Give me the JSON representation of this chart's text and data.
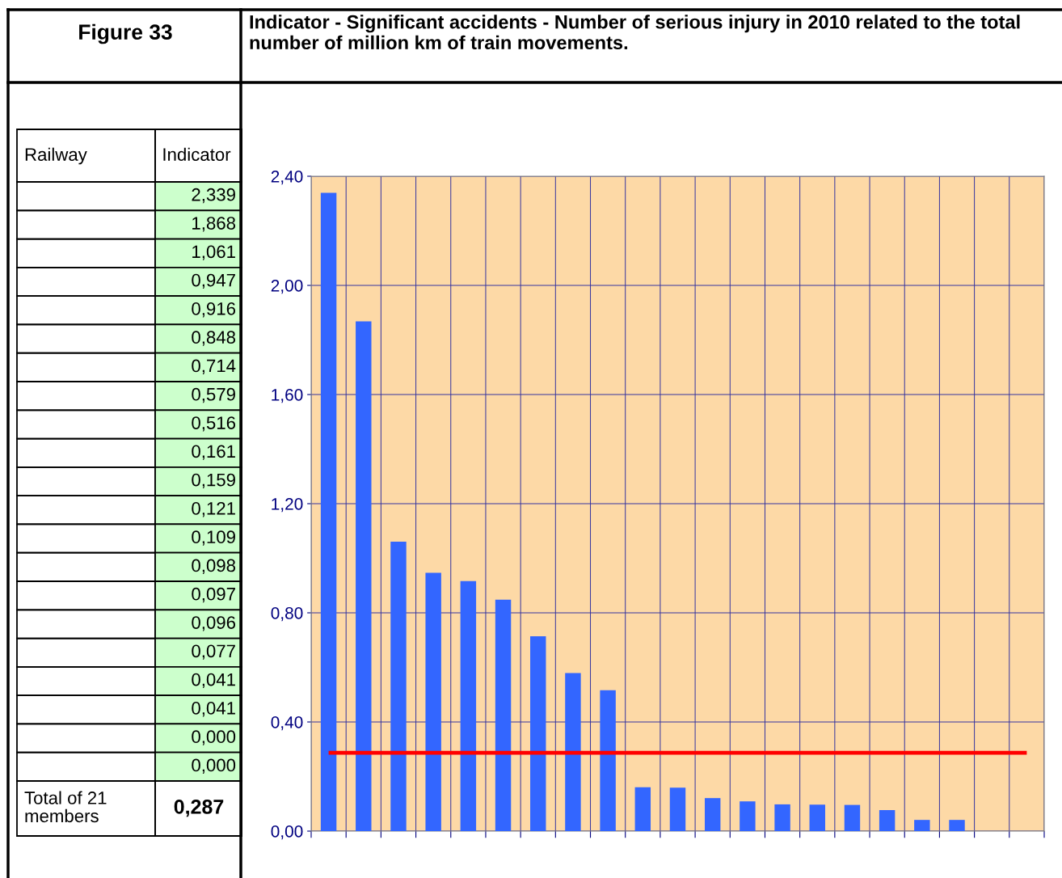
{
  "chart_data": {
    "type": "bar",
    "title": "Indicator - Significant accidents - Number of serious injury in 2010 related to the total number of million km of train movements.",
    "categories": [
      null,
      null,
      null,
      null,
      null,
      null,
      null,
      null,
      null,
      null,
      null,
      null,
      null,
      null,
      null,
      null,
      null,
      null,
      null,
      null,
      null
    ],
    "values": [
      2.339,
      1.868,
      1.061,
      0.947,
      0.916,
      0.848,
      0.714,
      0.579,
      0.516,
      0.161,
      0.159,
      0.121,
      0.109,
      0.098,
      0.097,
      0.096,
      0.077,
      0.041,
      0.041,
      0.0,
      0.0
    ],
    "color": "#3366ff",
    "ylim": [
      0,
      2.4
    ],
    "yticks": [
      {
        "value": 0,
        "label": "0,00"
      },
      {
        "value": 0.4,
        "label": "0,40"
      },
      {
        "value": 0.8,
        "label": "0,80"
      },
      {
        "value": 1.2,
        "label": "1,20"
      },
      {
        "value": 1.6,
        "label": "1,60"
      },
      {
        "value": 2.0,
        "label": "2,00"
      },
      {
        "value": 2.4,
        "label": "2,40"
      }
    ],
    "grid": true,
    "ref_lines": [
      {
        "axis": "y",
        "value": 0.287,
        "color": "#ff0000"
      }
    ],
    "annotations": [
      "Figure 33",
      "Railway",
      "Indicator",
      "Total of 21 members",
      "0,287",
      "2,339",
      "1,868",
      "1,061",
      "0,947",
      "0,916",
      "0,848",
      "0,714",
      "0,579",
      "0,516",
      "0,161",
      "0,159",
      "0,121",
      "0,109",
      "0,098",
      "0,097",
      "0,096",
      "0,077",
      "0,041",
      "0,041",
      "0,000",
      "0,000"
    ]
  }
}
